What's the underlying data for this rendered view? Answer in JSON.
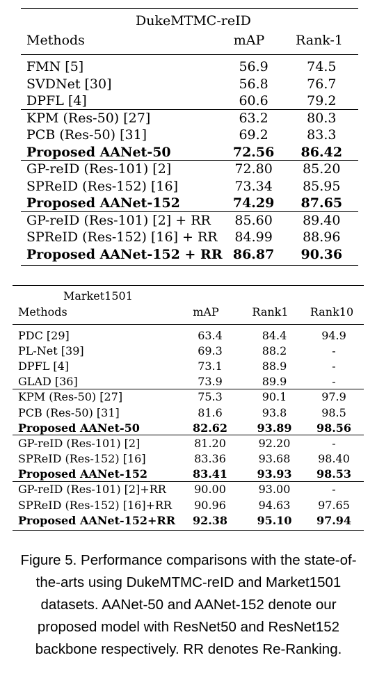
{
  "table1": {
    "title": "DukeMTMC-reID",
    "headers": [
      "Methods",
      "mAP",
      "Rank-1"
    ],
    "groups": [
      [
        {
          "method": "FMN [5]",
          "mAP": "56.9",
          "rank1": "74.5",
          "bold": false
        },
        {
          "method": "SVDNet [30]",
          "mAP": "56.8",
          "rank1": "76.7",
          "bold": false
        },
        {
          "method": "DPFL [4]",
          "mAP": "60.6",
          "rank1": "79.2",
          "bold": false
        }
      ],
      [
        {
          "method": "KPM (Res-50) [27]",
          "mAP": "63.2",
          "rank1": "80.3",
          "bold": false
        },
        {
          "method": "PCB (Res-50) [31]",
          "mAP": "69.2",
          "rank1": "83.3",
          "bold": false
        },
        {
          "method": "Proposed AANet-50",
          "mAP": "72.56",
          "rank1": "86.42",
          "bold": true
        }
      ],
      [
        {
          "method": "GP-reID (Res-101) [2]",
          "mAP": "72.80",
          "rank1": "85.20",
          "bold": false
        },
        {
          "method": "SPReID (Res-152) [16]",
          "mAP": "73.34",
          "rank1": "85.95",
          "bold": false
        },
        {
          "method": "Proposed AANet-152",
          "mAP": "74.29",
          "rank1": "87.65",
          "bold": true
        }
      ],
      [
        {
          "method": "GP-reID (Res-101) [2] + RR",
          "mAP": "85.60",
          "rank1": "89.40",
          "bold": false
        },
        {
          "method": "SPReID (Res-152) [16] + RR",
          "mAP": "84.99",
          "rank1": "88.96",
          "bold": false
        },
        {
          "method": "Proposed AANet-152 + RR",
          "mAP": "86.87",
          "rank1": "90.36",
          "bold": true
        }
      ]
    ]
  },
  "table2": {
    "title": "Market1501",
    "headers": [
      "Methods",
      "mAP",
      "Rank1",
      "Rank10"
    ],
    "groups": [
      [
        {
          "method": "PDC [29]",
          "mAP": "63.4",
          "rank1": "84.4",
          "rank10": "94.9",
          "bold": false
        },
        {
          "method": "PL-Net [39]",
          "mAP": "69.3",
          "rank1": "88.2",
          "rank10": "-",
          "bold": false
        },
        {
          "method": "DPFL [4]",
          "mAP": "73.1",
          "rank1": "88.9",
          "rank10": "-",
          "bold": false
        },
        {
          "method": "GLAD [36]",
          "mAP": "73.9",
          "rank1": "89.9",
          "rank10": "-",
          "bold": false
        }
      ],
      [
        {
          "method": "KPM (Res-50) [27]",
          "mAP": "75.3",
          "rank1": "90.1",
          "rank10": "97.9",
          "bold": false
        },
        {
          "method": "PCB (Res-50) [31]",
          "mAP": "81.6",
          "rank1": "93.8",
          "rank10": "98.5",
          "bold": false
        },
        {
          "method": "Proposed AANet-50",
          "mAP": "82.62",
          "rank1": "93.89",
          "rank10": "98.56",
          "bold": true
        }
      ],
      [
        {
          "method": "GP-reID (Res-101) [2]",
          "mAP": "81.20",
          "rank1": "92.20",
          "rank10": "-",
          "bold": false
        },
        {
          "method": "SPReID (Res-152) [16]",
          "mAP": "83.36",
          "rank1": "93.68",
          "rank10": "98.40",
          "bold": false
        },
        {
          "method": "Proposed AANet-152",
          "mAP": "83.41",
          "rank1": "93.93",
          "rank10": "98.53",
          "bold": true
        }
      ],
      [
        {
          "method": "GP-reID (Res-101) [2]+RR",
          "mAP": "90.00",
          "rank1": "93.00",
          "rank10": "-",
          "bold": false
        },
        {
          "method": "SPReID (Res-152) [16]+RR",
          "mAP": "90.96",
          "rank1": "94.63",
          "rank10": "97.65",
          "bold": false
        },
        {
          "method": "Proposed AANet-152+RR",
          "mAP": "92.38",
          "rank1": "95.10",
          "rank10": "97.94",
          "bold": true
        }
      ]
    ]
  },
  "caption": "Figure 5. Performance comparisons with the state-of-the-arts using DukeMTMC-reID and Market1501 datasets. AANet-50 and AANet-152 denote our proposed model with ResNet50 and ResNet152 backbone respectively. RR denotes Re-Ranking."
}
